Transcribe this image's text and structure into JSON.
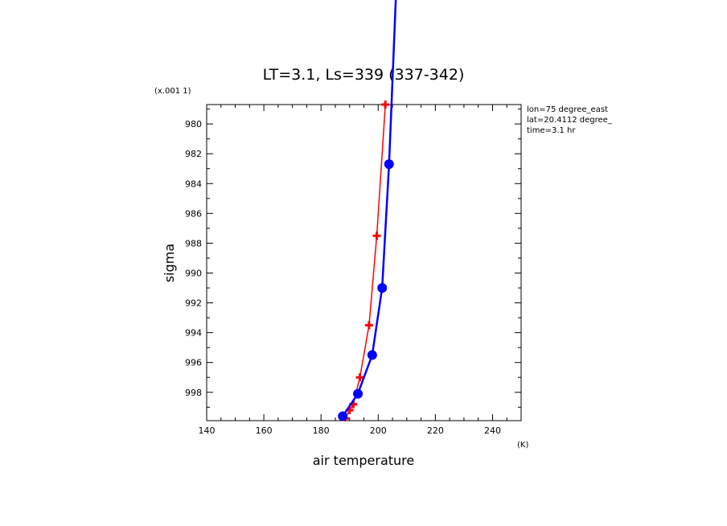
{
  "chart_data": {
    "type": "line",
    "title": "LT=3.1, Ls=339 (337-342)",
    "xlabel": "air temperature",
    "ylabel": "sigma",
    "x_unit": "(K)",
    "y_scale_label": "(x.001 1)",
    "xlim": [
      140,
      250
    ],
    "ylim": [
      999.9,
      978.7
    ],
    "y_inverted": true,
    "x_ticks": [
      140,
      160,
      180,
      200,
      220,
      240
    ],
    "y_ticks": [
      980,
      982,
      984,
      986,
      988,
      990,
      992,
      994,
      996,
      998
    ],
    "annotations": [
      "lon=75 degree_east",
      "lat=20.4112 degree_",
      "time=3.1 hr"
    ],
    "grid": false,
    "legend": "none",
    "series": [
      {
        "color": "#ff0000",
        "marker": "plus",
        "points": [
          {
            "x": 202.5,
            "y": 978.7
          },
          {
            "x": 199.5,
            "y": 987.5
          },
          {
            "x": 196.8,
            "y": 993.5
          },
          {
            "x": 193.6,
            "y": 997.0
          },
          {
            "x": 191.3,
            "y": 998.8
          },
          {
            "x": 190.0,
            "y": 999.2
          },
          {
            "x": 188.4,
            "y": 999.75
          }
        ]
      },
      {
        "color": "#0000ff",
        "marker": "circle",
        "points": [
          {
            "x": 206.5,
            "y": 970.0
          },
          {
            "x": 203.8,
            "y": 982.7
          },
          {
            "x": 201.4,
            "y": 991.0
          },
          {
            "x": 197.9,
            "y": 995.5
          },
          {
            "x": 192.9,
            "y": 998.1
          },
          {
            "x": 187.6,
            "y": 999.6
          }
        ]
      }
    ]
  }
}
